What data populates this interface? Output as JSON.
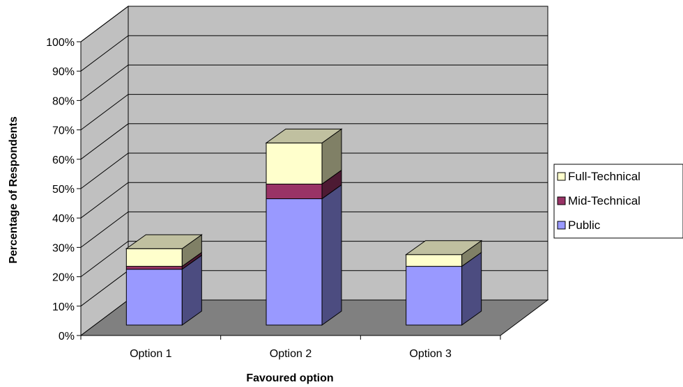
{
  "chart_data": {
    "type": "bar",
    "stacked": true,
    "three_d": true,
    "categories": [
      "Option 1",
      "Option 2",
      "Option 3"
    ],
    "series": [
      {
        "name": "Public",
        "values": [
          19,
          43,
          20
        ],
        "color": "#9999ff",
        "side_color": "#4c4c80"
      },
      {
        "name": "Mid-Technical",
        "values": [
          1,
          5,
          0
        ],
        "color": "#993366",
        "side_color": "#4d1a33"
      },
      {
        "name": "Full-Technical",
        "values": [
          6,
          14,
          4
        ],
        "color": "#ffffcc",
        "side_color": "#808066"
      }
    ],
    "ylim": [
      0,
      100
    ],
    "yticks": [
      "0%",
      "10%",
      "20%",
      "30%",
      "40%",
      "50%",
      "60%",
      "70%",
      "80%",
      "90%",
      "100%"
    ],
    "xlabel": "Favoured option",
    "ylabel": "Percentage of Respondents",
    "legend_position": "right",
    "legend_order": [
      "Full-Technical",
      "Mid-Technical",
      "Public"
    ],
    "grid": true,
    "colors": {
      "back_wall": "#c0c0c0",
      "left_wall": "#c0c0c0",
      "floor": "#808080",
      "gridline": "#000000"
    }
  }
}
